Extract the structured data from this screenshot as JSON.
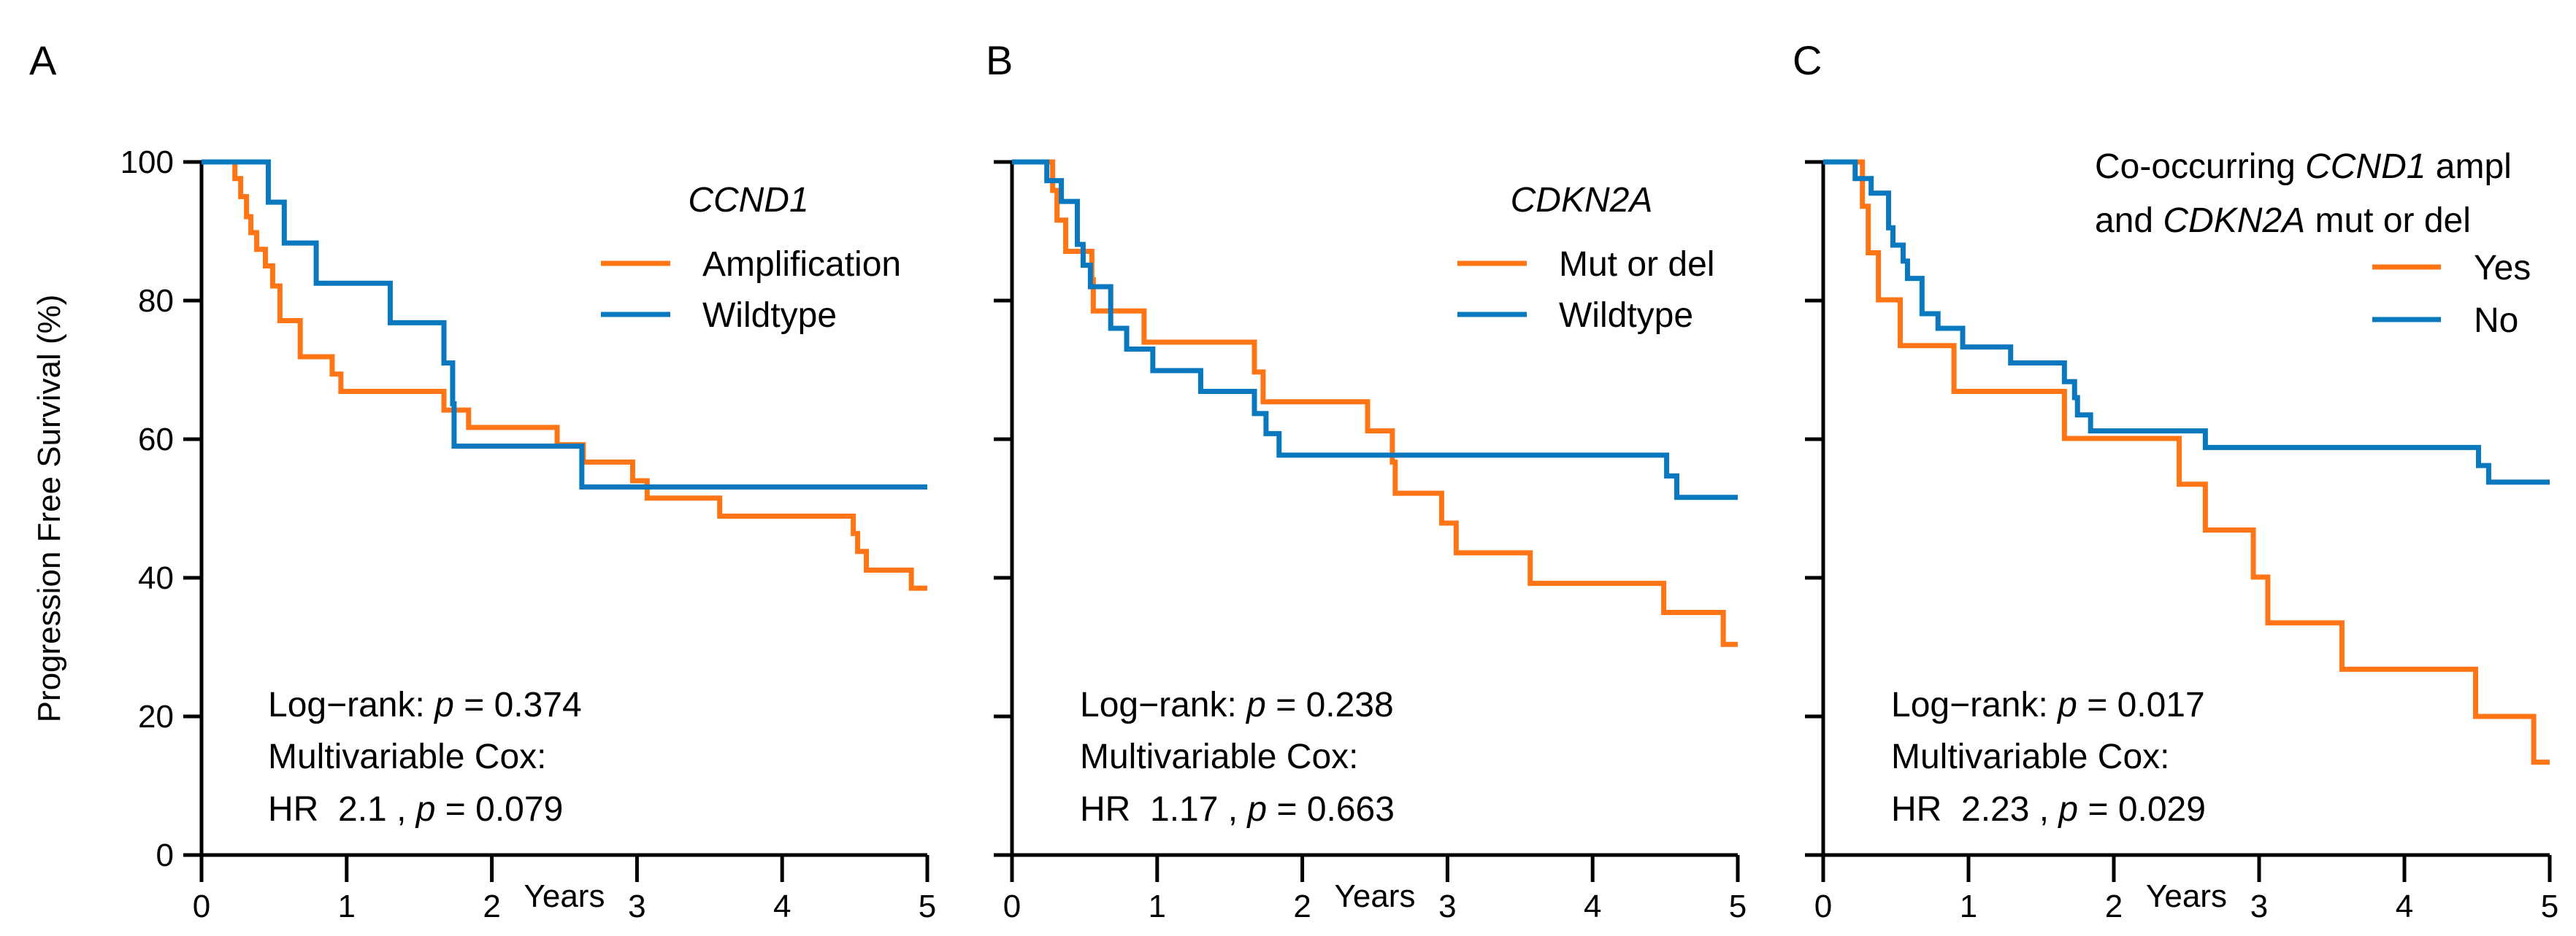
{
  "colors": {
    "orange": "#FF7414",
    "blue": "#0A78BE"
  },
  "chart_data": [
    {
      "type": "line",
      "panel_label": "A",
      "title": "",
      "xlabel": "Years",
      "ylabel": "Progression Free Survival (%)",
      "xlim": [
        0,
        5
      ],
      "ylim": [
        0,
        100
      ],
      "xticks": [
        "0",
        "1",
        "2",
        "3",
        "4",
        "5"
      ],
      "yticks": [
        "0",
        "20",
        "40",
        "60",
        "80",
        "100"
      ],
      "legend": {
        "title_parts": [
          [
            {
              "t": "CCND1",
              "i": true
            }
          ]
        ],
        "placement": "top-right"
      },
      "series": [
        {
          "name": "Amplification",
          "color": "orange",
          "x": [
            0,
            0.23,
            0.27,
            0.31,
            0.34,
            0.38,
            0.44,
            0.49,
            0.54,
            0.68,
            0.9,
            0.96,
            1.67,
            1.84,
            2.45,
            2.63,
            2.97,
            3.07,
            3.57,
            4.49,
            4.52,
            4.58,
            4.89,
            5
          ],
          "y": [
            100,
            97.6,
            95,
            92.1,
            89.8,
            87.4,
            85,
            82.1,
            77.1,
            71.9,
            69.4,
            66.9,
            64.2,
            61.7,
            59.2,
            56.7,
            54,
            51.5,
            48.9,
            46.4,
            43.8,
            41.1,
            38.5,
            38.5
          ]
        },
        {
          "name": "Wildtype",
          "color": "blue",
          "x": [
            0,
            0.46,
            0.57,
            0.79,
            1.3,
            1.67,
            1.73,
            1.74,
            2.62,
            5
          ],
          "y": [
            100,
            94.2,
            88.3,
            82.5,
            76.8,
            71,
            65.1,
            59,
            53.1,
            53.1
          ]
        }
      ],
      "stats": {
        "log_rank_label": "Log−rank:",
        "p_symbol": "p",
        "log_rank_p": "= 0.374",
        "cox_label": "Multivariable Cox:",
        "hr_label": "HR",
        "hr": "2.1 ,",
        "cox_p": "= 0.079"
      }
    },
    {
      "type": "line",
      "panel_label": "B",
      "title": "",
      "xlabel": "Years",
      "ylabel": "",
      "xlim": [
        0,
        5
      ],
      "ylim": [
        0,
        100
      ],
      "xticks": [
        "0",
        "1",
        "2",
        "3",
        "4",
        "5"
      ],
      "yticks": [],
      "legend": {
        "title_parts": [
          [
            {
              "t": "CDKN2A",
              "i": true
            }
          ]
        ],
        "placement": "top-right"
      },
      "series": [
        {
          "name": "Mut or del",
          "color": "orange",
          "x": [
            0,
            0.28,
            0.31,
            0.37,
            0.55,
            0.56,
            0.91,
            1.67,
            1.73,
            2.45,
            2.62,
            2.64,
            2.96,
            3.06,
            3.57,
            4.49,
            4.9,
            5
          ],
          "y": [
            100,
            95.9,
            91.6,
            87.1,
            83,
            78.5,
            74,
            69.7,
            65.4,
            61.2,
            56.7,
            52.2,
            47.9,
            43.6,
            39.2,
            35,
            30.4,
            30.4
          ]
        },
        {
          "name": "Wildtype",
          "color": "blue",
          "x": [
            0,
            0.24,
            0.34,
            0.45,
            0.49,
            0.54,
            0.68,
            0.79,
            0.97,
            1.3,
            1.67,
            1.75,
            1.84,
            4.51,
            4.58,
            5
          ],
          "y": [
            100,
            97.3,
            94.3,
            88.1,
            85.1,
            82,
            76,
            73,
            69.9,
            66.9,
            63.7,
            60.8,
            57.7,
            54.7,
            51.6,
            51.6
          ]
        }
      ],
      "stats": {
        "log_rank_label": "Log−rank:",
        "p_symbol": "p",
        "log_rank_p": "= 0.238",
        "cox_label": "Multivariable Cox:",
        "hr_label": "HR",
        "hr": "1.17 ,",
        "cox_p": "= 0.663"
      }
    },
    {
      "type": "line",
      "panel_label": "C",
      "title": "",
      "xlabel": "Years",
      "ylabel": "",
      "xlim": [
        0,
        5
      ],
      "ylim": [
        0,
        100
      ],
      "xticks": [
        "0",
        "1",
        "2",
        "3",
        "4",
        "5"
      ],
      "yticks": [],
      "legend": {
        "title_parts": [
          [
            {
              "t": "Co-occurring ",
              "i": false
            },
            {
              "t": "CCND1",
              "i": true
            },
            {
              "t": " ampl",
              "i": false
            }
          ],
          [
            {
              "t": "and ",
              "i": false
            },
            {
              "t": "CDKN2A",
              "i": true
            },
            {
              "t": " mut or del",
              "i": false
            }
          ]
        ],
        "placement": "top-right"
      },
      "series": [
        {
          "name": "Yes",
          "color": "orange",
          "x": [
            0,
            0.27,
            0.31,
            0.38,
            0.53,
            0.9,
            1.66,
            2.45,
            2.63,
            2.96,
            3.06,
            3.57,
            4.49,
            4.89,
            5
          ],
          "y": [
            100,
            93.6,
            86.9,
            80.1,
            73.5,
            66.9,
            60.1,
            53.5,
            46.9,
            40.1,
            33.5,
            26.8,
            20,
            13.4,
            13.4
          ]
        },
        {
          "name": "No",
          "color": "blue",
          "x": [
            0,
            0.22,
            0.33,
            0.45,
            0.48,
            0.55,
            0.58,
            0.68,
            0.79,
            0.96,
            1.29,
            1.66,
            1.73,
            1.75,
            1.84,
            2.63,
            4.51,
            4.58,
            5
          ],
          "y": [
            100,
            97.6,
            95.5,
            90.5,
            88,
            85.7,
            83.2,
            78.1,
            76,
            73.3,
            71,
            68.3,
            66,
            63.5,
            61.2,
            58.8,
            56.2,
            53.8,
            53.8
          ]
        }
      ],
      "stats": {
        "log_rank_label": "Log−rank:",
        "p_symbol": "p",
        "log_rank_p": "= 0.017",
        "cox_label": "Multivariable Cox:",
        "hr_label": "HR",
        "hr": "2.23 ,",
        "cox_p": "= 0.029"
      }
    }
  ]
}
